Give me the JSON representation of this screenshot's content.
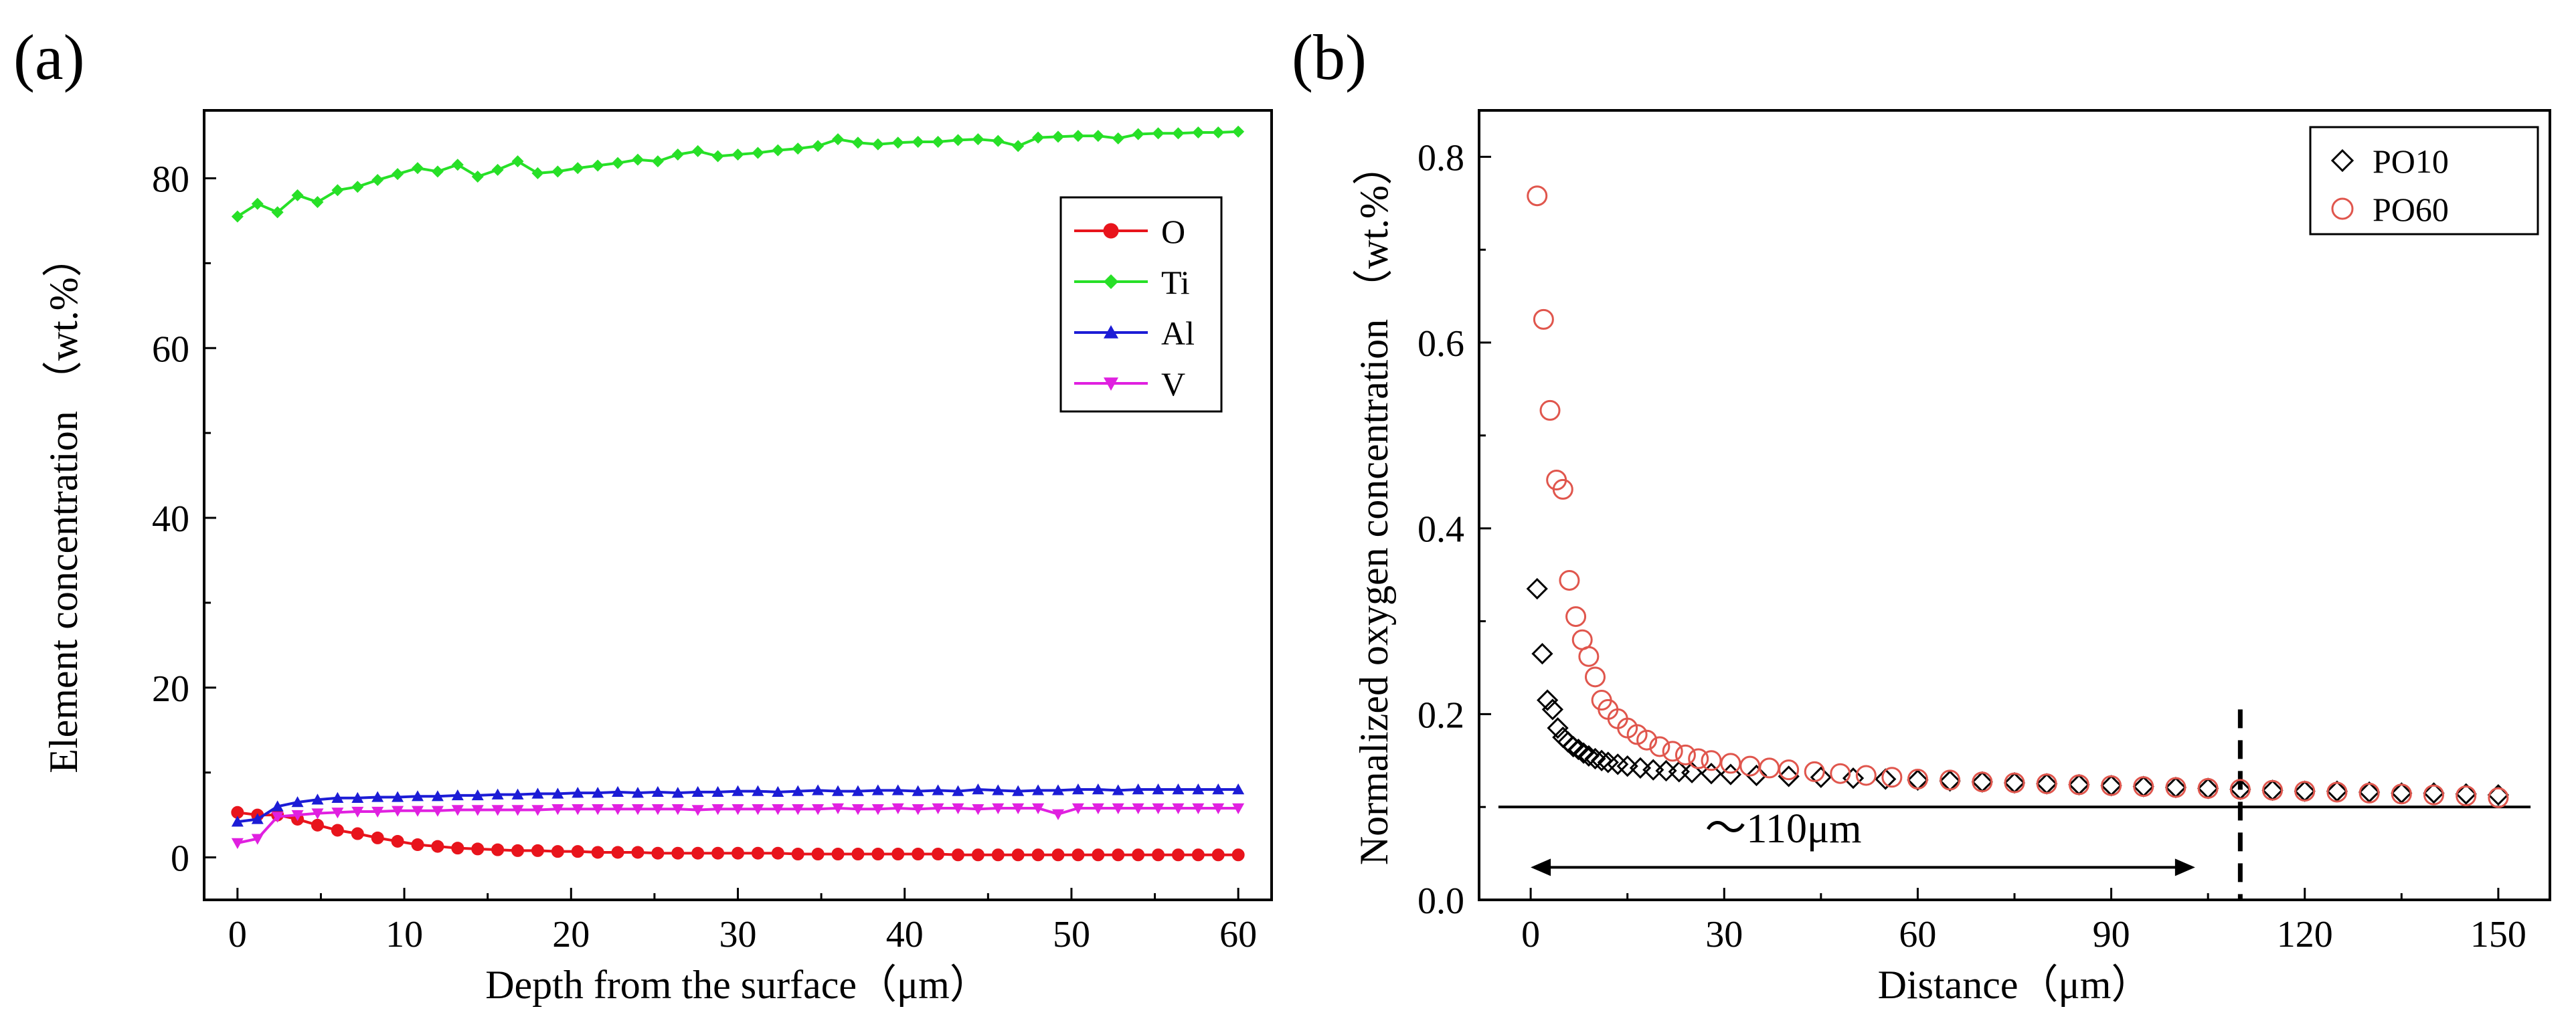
{
  "figure": {
    "panel_a_label": "(a)",
    "panel_b_label": "(b)"
  },
  "chart_data": [
    {
      "type": "line",
      "panel": "(a)",
      "xlabel": "Depth from the surface（μm）",
      "ylabel": "Element concentration （wt.%）",
      "xlim": [
        -2,
        62
      ],
      "ylim": [
        -5,
        88
      ],
      "xticks": [
        0,
        10,
        20,
        30,
        40,
        50,
        60
      ],
      "yticks": [
        0,
        20,
        40,
        60,
        80
      ],
      "grid": false,
      "legend_position": "top-right",
      "x": [
        0,
        1.2,
        2.4,
        3.6,
        4.8,
        6,
        7.2,
        8.4,
        9.6,
        10.8,
        12,
        13.2,
        14.4,
        15.6,
        16.8,
        18,
        19.2,
        20.4,
        21.6,
        22.8,
        24,
        25.2,
        26.4,
        27.6,
        28.8,
        30,
        31.2,
        32.4,
        33.6,
        34.8,
        36,
        37.2,
        38.4,
        39.6,
        40.8,
        42,
        43.2,
        44.4,
        45.6,
        46.8,
        48,
        49.2,
        50.4,
        51.6,
        52.8,
        54,
        55.2,
        56.4,
        57.6,
        58.8,
        60
      ],
      "series": [
        {
          "name": "O",
          "color": "#e8141c",
          "marker": "circle",
          "values": [
            5.3,
            5.0,
            5.0,
            4.5,
            3.8,
            3.2,
            2.8,
            2.3,
            1.9,
            1.5,
            1.3,
            1.1,
            1.0,
            0.9,
            0.8,
            0.8,
            0.7,
            0.7,
            0.6,
            0.6,
            0.6,
            0.5,
            0.5,
            0.5,
            0.5,
            0.5,
            0.5,
            0.5,
            0.4,
            0.4,
            0.4,
            0.4,
            0.4,
            0.4,
            0.4,
            0.4,
            0.3,
            0.3,
            0.3,
            0.3,
            0.3,
            0.3,
            0.3,
            0.3,
            0.3,
            0.3,
            0.3,
            0.3,
            0.3,
            0.3,
            0.3
          ]
        },
        {
          "name": "Ti",
          "color": "#27e027",
          "marker": "diamond",
          "values": [
            75.5,
            77.0,
            76.0,
            78.0,
            77.2,
            78.6,
            79.0,
            79.8,
            80.5,
            81.2,
            80.8,
            81.6,
            80.2,
            81.0,
            82.0,
            80.6,
            80.8,
            81.2,
            81.5,
            81.8,
            82.2,
            82.0,
            82.8,
            83.2,
            82.6,
            82.8,
            83.0,
            83.3,
            83.5,
            83.8,
            84.6,
            84.2,
            84.0,
            84.2,
            84.3,
            84.3,
            84.5,
            84.6,
            84.4,
            83.8,
            84.8,
            84.9,
            85.0,
            85.0,
            84.7,
            85.2,
            85.3,
            85.3,
            85.4,
            85.4,
            85.5
          ]
        },
        {
          "name": "Al",
          "color": "#1c1cd6",
          "marker": "triangle-up",
          "values": [
            4.2,
            4.5,
            6.0,
            6.5,
            6.8,
            7.0,
            7.0,
            7.1,
            7.1,
            7.2,
            7.2,
            7.3,
            7.3,
            7.4,
            7.4,
            7.5,
            7.5,
            7.6,
            7.6,
            7.7,
            7.6,
            7.7,
            7.6,
            7.7,
            7.7,
            7.8,
            7.8,
            7.7,
            7.8,
            7.9,
            7.8,
            7.8,
            7.9,
            7.9,
            7.8,
            7.9,
            7.8,
            8.0,
            7.9,
            7.8,
            7.9,
            7.9,
            8.0,
            8.0,
            7.9,
            8.0,
            8.0,
            8.0,
            8.0,
            8.0,
            8.0
          ]
        },
        {
          "name": "V",
          "color": "#e020e0",
          "marker": "triangle-down",
          "values": [
            1.7,
            2.2,
            4.8,
            5.0,
            5.2,
            5.3,
            5.4,
            5.4,
            5.5,
            5.5,
            5.5,
            5.6,
            5.6,
            5.6,
            5.6,
            5.6,
            5.7,
            5.7,
            5.7,
            5.7,
            5.7,
            5.7,
            5.7,
            5.6,
            5.7,
            5.7,
            5.7,
            5.7,
            5.7,
            5.7,
            5.8,
            5.7,
            5.7,
            5.8,
            5.7,
            5.8,
            5.8,
            5.7,
            5.8,
            5.8,
            5.8,
            5.1,
            5.8,
            5.8,
            5.8,
            5.8,
            5.8,
            5.8,
            5.8,
            5.8,
            5.8
          ]
        }
      ]
    },
    {
      "type": "scatter",
      "panel": "(b)",
      "xlabel": "Distance（μm）",
      "ylabel": "Normalized oxygen concentration （wt.%）",
      "xlim": [
        -8,
        158
      ],
      "ylim": [
        0.0,
        0.85
      ],
      "xticks": [
        0,
        30,
        60,
        90,
        120,
        150
      ],
      "yticks": [
        0.0,
        0.2,
        0.4,
        0.6,
        0.8
      ],
      "ytick_labels": [
        "0.0",
        "0.2",
        "0.4",
        "0.6",
        "0.8"
      ],
      "grid": false,
      "legend_position": "top-right",
      "series": [
        {
          "name": "PO10",
          "color": "#000000",
          "marker": "diamond-open",
          "x": [
            1,
            1.8,
            2.6,
            3.4,
            4.2,
            5,
            5.8,
            6.6,
            7.4,
            8.2,
            9,
            10,
            11,
            12,
            13.5,
            15,
            17,
            19,
            21,
            23,
            25,
            28,
            31,
            35,
            40,
            45,
            50,
            55,
            60,
            65,
            70,
            75,
            80,
            85,
            90,
            95,
            100,
            105,
            110,
            115,
            120,
            125,
            130,
            135,
            140,
            145,
            150
          ],
          "values": [
            0.335,
            0.265,
            0.215,
            0.205,
            0.185,
            0.175,
            0.17,
            0.165,
            0.162,
            0.158,
            0.155,
            0.152,
            0.15,
            0.148,
            0.146,
            0.144,
            0.142,
            0.14,
            0.139,
            0.138,
            0.137,
            0.136,
            0.135,
            0.134,
            0.133,
            0.132,
            0.131,
            0.13,
            0.129,
            0.128,
            0.127,
            0.126,
            0.125,
            0.124,
            0.123,
            0.122,
            0.121,
            0.12,
            0.119,
            0.118,
            0.117,
            0.117,
            0.116,
            0.115,
            0.115,
            0.114,
            0.113
          ]
        },
        {
          "name": "PO60",
          "color": "#e0564d",
          "marker": "circle-open",
          "x": [
            1,
            2,
            3,
            4,
            5,
            6,
            7,
            8,
            9,
            10,
            11,
            12,
            13.5,
            15,
            16.5,
            18,
            20,
            22,
            24,
            26,
            28,
            31,
            34,
            37,
            40,
            44,
            48,
            52,
            56,
            60,
            65,
            70,
            75,
            80,
            85,
            90,
            95,
            100,
            105,
            110,
            115,
            120,
            125,
            130,
            135,
            140,
            145,
            150
          ],
          "values": [
            0.758,
            0.625,
            0.527,
            0.452,
            0.442,
            0.344,
            0.305,
            0.28,
            0.262,
            0.24,
            0.215,
            0.205,
            0.195,
            0.185,
            0.178,
            0.172,
            0.165,
            0.16,
            0.156,
            0.152,
            0.15,
            0.147,
            0.144,
            0.142,
            0.14,
            0.138,
            0.136,
            0.134,
            0.132,
            0.13,
            0.129,
            0.127,
            0.126,
            0.125,
            0.124,
            0.123,
            0.122,
            0.121,
            0.12,
            0.119,
            0.118,
            0.117,
            0.116,
            0.115,
            0.114,
            0.113,
            0.112,
            0.11
          ]
        }
      ],
      "annotations": {
        "baseline_y": 0.1,
        "dashed_line_x": 110,
        "arrow_x_range": [
          0,
          103
        ],
        "arrow_y": 0.035,
        "arrow_label": "～110μm"
      }
    }
  ]
}
